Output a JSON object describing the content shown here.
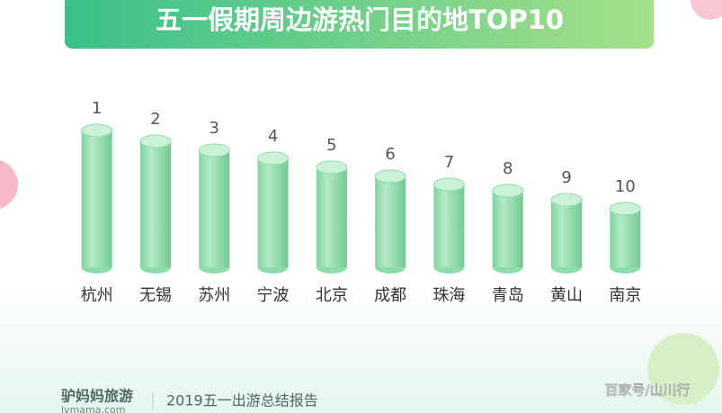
{
  "chart_data": {
    "type": "cylinder",
    "title": "五一假期周边游热门目的地TOP10",
    "categories": [
      "杭州",
      "无锡",
      "苏州",
      "宁波",
      "北京",
      "成都",
      "珠海",
      "青岛",
      "黄山",
      "南京"
    ],
    "ranks": [
      1,
      2,
      3,
      4,
      5,
      6,
      7,
      8,
      9,
      10
    ],
    "values": [
      152,
      140,
      130,
      121,
      111,
      101,
      92,
      85,
      75,
      65
    ],
    "ylim": [
      0,
      160
    ],
    "color": "#8fdcab"
  },
  "brand": "驴妈妈旅游",
  "brand_url": "lvmama.com",
  "report": "2019五一出游总结报告",
  "watermark": "百家号/山川行"
}
